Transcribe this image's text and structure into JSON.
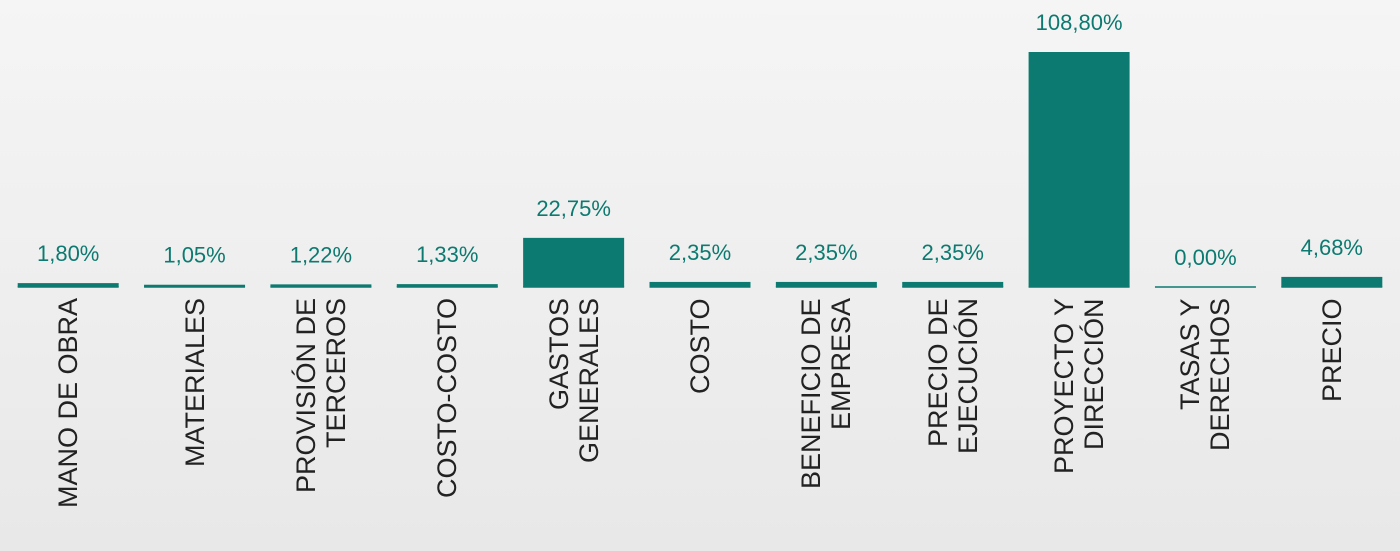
{
  "chart_data": {
    "type": "bar",
    "categories": [
      "MANO DE OBRA",
      "MATERIALES",
      "PROVISIÓN DE\nTERCEROS",
      "COSTO-COSTO",
      "GASTOS\nGENERALES",
      "COSTO",
      "BENEFICIO DE\nEMPRESA",
      "PRECIO DE\nEJECUCIÓN",
      "PROYECTO Y\nDIRECCIÓN",
      "TASAS Y\nDERECHOS",
      "PRECIO"
    ],
    "values": [
      1.8,
      1.05,
      1.22,
      1.33,
      22.75,
      2.35,
      2.35,
      2.35,
      108.8,
      0.0,
      4.68
    ],
    "value_labels": [
      "1,80%",
      "1,05%",
      "1,22%",
      "1,33%",
      "22,75%",
      "2,35%",
      "2,35%",
      "2,35%",
      "108,80%",
      "0,00%",
      "4,68%"
    ],
    "color": "#0c7a70"
  }
}
